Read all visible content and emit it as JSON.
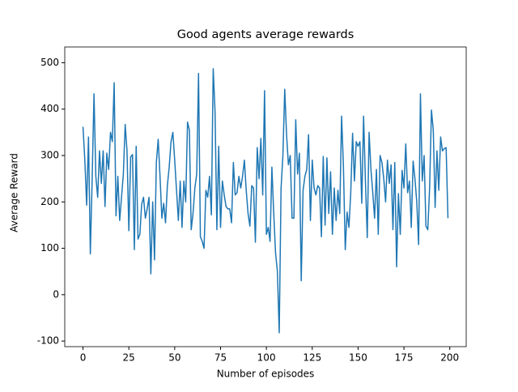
{
  "chart_data": {
    "type": "line",
    "title": "Good agents average rewards",
    "xlabel": "Number of episodes",
    "ylabel": "Average Reward",
    "x": [
      0,
      1,
      2,
      3,
      4,
      5,
      6,
      7,
      8,
      9,
      10,
      11,
      12,
      13,
      14,
      15,
      16,
      17,
      18,
      19,
      20,
      21,
      22,
      23,
      24,
      25,
      26,
      27,
      28,
      29,
      30,
      31,
      32,
      33,
      34,
      35,
      36,
      37,
      38,
      39,
      40,
      41,
      42,
      43,
      44,
      45,
      46,
      47,
      48,
      49,
      50,
      51,
      52,
      53,
      54,
      55,
      56,
      57,
      58,
      59,
      60,
      61,
      62,
      63,
      64,
      65,
      66,
      67,
      68,
      69,
      70,
      71,
      72,
      73,
      74,
      75,
      76,
      77,
      78,
      79,
      80,
      81,
      82,
      83,
      84,
      85,
      86,
      87,
      88,
      89,
      90,
      91,
      92,
      93,
      94,
      95,
      96,
      97,
      98,
      99,
      100,
      101,
      102,
      103,
      104,
      105,
      106,
      107,
      108,
      109,
      110,
      111,
      112,
      113,
      114,
      115,
      116,
      117,
      118,
      119,
      120,
      121,
      122,
      123,
      124,
      125,
      126,
      127,
      128,
      129,
      130,
      131,
      132,
      133,
      134,
      135,
      136,
      137,
      138,
      139,
      140,
      141,
      142,
      143,
      144,
      145,
      146,
      147,
      148,
      149,
      150,
      151,
      152,
      153,
      154,
      155,
      156,
      157,
      158,
      159,
      160,
      161,
      162,
      163,
      164,
      165,
      166,
      167,
      168,
      169,
      170,
      171,
      172,
      173,
      174,
      175,
      176,
      177,
      178,
      179,
      180,
      181,
      182,
      183,
      184,
      185,
      186,
      187,
      188,
      189,
      190,
      191,
      192,
      193,
      194,
      195,
      196,
      197,
      198,
      199
    ],
    "series": [
      {
        "color": "#1f77b4",
        "values": [
          362,
          290,
          193,
          340,
          88,
          250,
          433,
          255,
          210,
          310,
          240,
          310,
          190,
          305,
          270,
          350,
          330,
          457,
          170,
          255,
          160,
          210,
          260,
          367,
          310,
          138,
          297,
          302,
          97,
          320,
          120,
          130,
          195,
          210,
          165,
          185,
          210,
          45,
          200,
          75,
          285,
          335,
          255,
          165,
          197,
          155,
          235,
          275,
          330,
          350,
          290,
          225,
          160,
          245,
          145,
          245,
          200,
          372,
          355,
          140,
          175,
          230,
          260,
          477,
          125,
          115,
          100,
          225,
          210,
          255,
          172,
          487,
          395,
          140,
          320,
          145,
          245,
          215,
          190,
          185,
          185,
          155,
          285,
          215,
          220,
          255,
          230,
          255,
          290,
          225,
          175,
          148,
          235,
          230,
          113,
          317,
          250,
          337,
          215,
          440,
          130,
          145,
          115,
          275,
          175,
          90,
          50,
          -82,
          230,
          300,
          443,
          345,
          280,
          300,
          165,
          165,
          377,
          260,
          305,
          30,
          225,
          255,
          270,
          345,
          160,
          290,
          230,
          215,
          235,
          230,
          125,
          298,
          150,
          295,
          175,
          265,
          130,
          230,
          160,
          225,
          175,
          385,
          278,
          97,
          178,
          145,
          220,
          348,
          245,
          330,
          320,
          330,
          197,
          385,
          245,
          123,
          350,
          270,
          220,
          165,
          270,
          130,
          300,
          285,
          250,
          200,
          290,
          240,
          280,
          140,
          285,
          60,
          218,
          130,
          268,
          230,
          325,
          220,
          245,
          145,
          288,
          250,
          200,
          108,
          433,
          245,
          300,
          148,
          140,
          230,
          398,
          355,
          188,
          310,
          225,
          340,
          310,
          315,
          317,
          165
        ]
      }
    ],
    "xlim": [
      -9.95,
      208.95
    ],
    "ylim": [
      -112,
      534
    ],
    "xticks": [
      0,
      25,
      50,
      75,
      100,
      125,
      150,
      175,
      200
    ],
    "yticks": [
      -100,
      0,
      100,
      200,
      300,
      400,
      500
    ]
  }
}
